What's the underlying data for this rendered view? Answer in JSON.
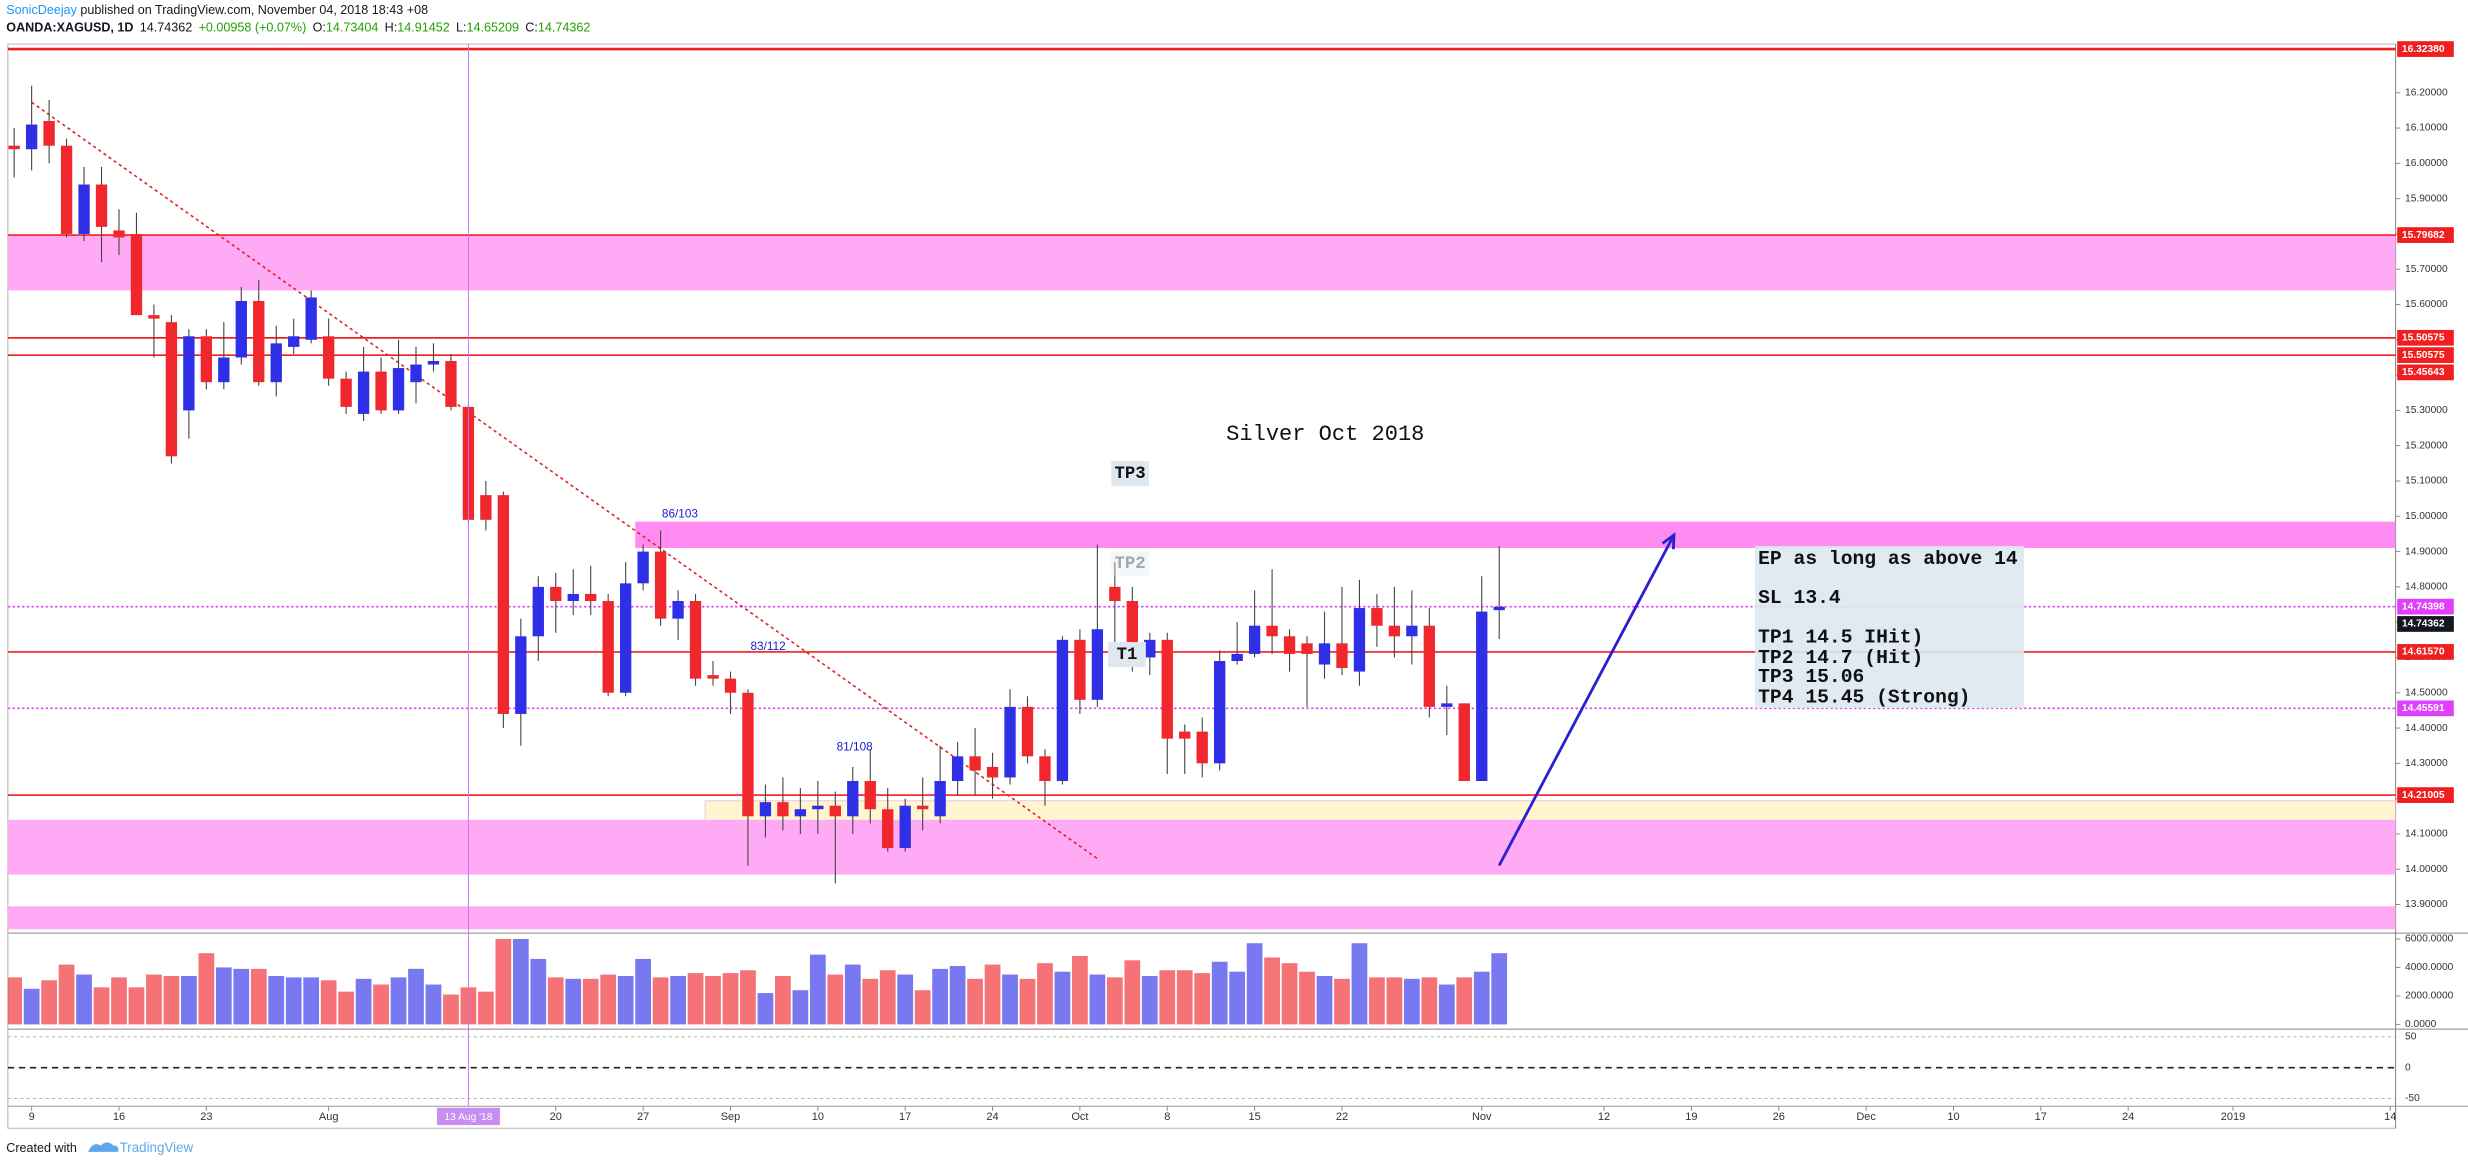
{
  "chart_data": {
    "type": "candlestick",
    "author": "SonicDeejay",
    "published": " published on TradingView.com, November 04, 2018 18:43 +08",
    "symbol": "OANDA:XAGUSD, 1D",
    "last": "14.74362",
    "change": "+0.00958 (+0.07%)",
    "ohlc_header": [
      {
        "key": "O:",
        "value": "14.73404"
      },
      {
        "key": "H:",
        "value": "14.91452"
      },
      {
        "key": "L:",
        "value": "14.65209"
      },
      {
        "key": "C:",
        "value": "14.74362"
      }
    ],
    "title": "Silver Oct 2018",
    "footer_prefix": "Created with",
    "footer_brand": "TradingView",
    "up_color": "#2f2fe8",
    "down_color": "#f0282d",
    "x": [
      "2018-07-06",
      "2018-07-09",
      "2018-07-10",
      "2018-07-11",
      "2018-07-12",
      "2018-07-13",
      "2018-07-16",
      "2018-07-17",
      "2018-07-18",
      "2018-07-19",
      "2018-07-20",
      "2018-07-23",
      "2018-07-24",
      "2018-07-25",
      "2018-07-26",
      "2018-07-27",
      "2018-07-30",
      "2018-07-31",
      "2018-08-01",
      "2018-08-02",
      "2018-08-03",
      "2018-08-06",
      "2018-08-07",
      "2018-08-08",
      "2018-08-09",
      "2018-08-10",
      "2018-08-13",
      "2018-08-14",
      "2018-08-15",
      "2018-08-16",
      "2018-08-17",
      "2018-08-20",
      "2018-08-21",
      "2018-08-22",
      "2018-08-23",
      "2018-08-24",
      "2018-08-27",
      "2018-08-28",
      "2018-08-29",
      "2018-08-30",
      "2018-08-31",
      "2018-09-03",
      "2018-09-04",
      "2018-09-05",
      "2018-09-06",
      "2018-09-07",
      "2018-09-10",
      "2018-09-11",
      "2018-09-12",
      "2018-09-13",
      "2018-09-14",
      "2018-09-17",
      "2018-09-18",
      "2018-09-19",
      "2018-09-20",
      "2018-09-21",
      "2018-09-24",
      "2018-09-25",
      "2018-09-26",
      "2018-09-27",
      "2018-09-28",
      "2018-10-01",
      "2018-10-02",
      "2018-10-03",
      "2018-10-04",
      "2018-10-05",
      "2018-10-08",
      "2018-10-09",
      "2018-10-10",
      "2018-10-11",
      "2018-10-12",
      "2018-10-15",
      "2018-10-16",
      "2018-10-17",
      "2018-10-18",
      "2018-10-19",
      "2018-10-22",
      "2018-10-23",
      "2018-10-24",
      "2018-10-25",
      "2018-10-26",
      "2018-10-29",
      "2018-10-30",
      "2018-10-31",
      "2018-11-01",
      "2018-11-02"
    ],
    "open": [
      16.05,
      16.04,
      16.12,
      16.05,
      15.8,
      15.94,
      15.81,
      15.8,
      15.57,
      15.55,
      15.3,
      15.51,
      15.38,
      15.45,
      15.61,
      15.38,
      15.48,
      15.5,
      15.51,
      15.39,
      15.29,
      15.41,
      15.3,
      15.38,
      15.43,
      15.44,
      15.31,
      15.06,
      15.06,
      14.44,
      14.66,
      14.8,
      14.76,
      14.78,
      14.76,
      14.5,
      14.81,
      14.9,
      14.71,
      14.76,
      14.55,
      14.54,
      14.5,
      14.15,
      14.19,
      14.15,
      14.17,
      14.18,
      14.15,
      14.25,
      14.17,
      14.06,
      14.18,
      14.15,
      14.25,
      14.32,
      14.29,
      14.26,
      14.46,
      14.32,
      14.25,
      14.65,
      14.48,
      14.8,
      14.76,
      14.6,
      14.65,
      14.39,
      14.39,
      14.3,
      14.59,
      14.61,
      14.69,
      14.66,
      14.64,
      14.58,
      14.64,
      14.56,
      14.74,
      14.69,
      14.66,
      14.69,
      14.46,
      14.47,
      14.25,
      14.73404
    ],
    "high": [
      16.1,
      16.22,
      16.18,
      16.07,
      15.99,
      15.99,
      15.87,
      15.86,
      15.6,
      15.57,
      15.53,
      15.53,
      15.55,
      15.65,
      15.67,
      15.54,
      15.56,
      15.64,
      15.56,
      15.41,
      15.48,
      15.45,
      15.5,
      15.48,
      15.49,
      15.46,
      15.32,
      15.1,
      15.07,
      14.71,
      14.83,
      14.84,
      14.85,
      14.86,
      14.78,
      14.87,
      14.92,
      14.96,
      14.79,
      14.78,
      14.59,
      14.56,
      14.51,
      14.24,
      14.26,
      14.23,
      14.25,
      14.22,
      14.29,
      14.34,
      14.23,
      14.2,
      14.26,
      14.35,
      14.36,
      14.4,
      14.33,
      14.51,
      14.49,
      14.34,
      14.66,
      14.68,
      14.92,
      14.87,
      14.8,
      14.67,
      14.67,
      14.41,
      14.43,
      14.62,
      14.7,
      14.79,
      14.85,
      14.68,
      14.66,
      14.73,
      14.8,
      14.82,
      14.78,
      14.8,
      14.79,
      14.74,
      14.52,
      14.47,
      14.83,
      14.91452
    ],
    "low": [
      15.96,
      15.98,
      16.0,
      15.79,
      15.78,
      15.72,
      15.74,
      15.57,
      15.45,
      15.15,
      15.22,
      15.36,
      15.36,
      15.43,
      15.37,
      15.34,
      15.46,
      15.49,
      15.37,
      15.29,
      15.27,
      15.29,
      15.29,
      15.32,
      15.41,
      15.3,
      14.98,
      14.96,
      14.4,
      14.35,
      14.59,
      14.67,
      14.72,
      14.72,
      14.49,
      14.49,
      14.79,
      14.69,
      14.65,
      14.52,
      14.52,
      14.44,
      14.01,
      14.09,
      14.11,
      14.1,
      14.1,
      13.96,
      14.1,
      14.13,
      14.05,
      14.05,
      14.11,
      14.13,
      14.21,
      14.21,
      14.2,
      14.24,
      14.3,
      14.18,
      14.24,
      14.44,
      14.46,
      14.6,
      14.56,
      14.55,
      14.27,
      14.27,
      14.26,
      14.28,
      14.58,
      14.6,
      14.61,
      14.56,
      14.46,
      14.54,
      14.55,
      14.52,
      14.63,
      14.6,
      14.58,
      14.43,
      14.38,
      14.25,
      14.25,
      14.65209
    ],
    "close": [
      16.04,
      16.11,
      16.05,
      15.8,
      15.94,
      15.82,
      15.79,
      15.57,
      15.56,
      15.17,
      15.51,
      15.38,
      15.45,
      15.61,
      15.38,
      15.49,
      15.51,
      15.62,
      15.39,
      15.31,
      15.41,
      15.3,
      15.42,
      15.43,
      15.44,
      15.31,
      14.99,
      14.99,
      14.44,
      14.66,
      14.8,
      14.76,
      14.78,
      14.76,
      14.5,
      14.81,
      14.9,
      14.71,
      14.76,
      14.54,
      14.54,
      14.5,
      14.15,
      14.19,
      14.15,
      14.17,
      14.18,
      14.15,
      14.25,
      14.17,
      14.06,
      14.18,
      14.17,
      14.25,
      14.32,
      14.28,
      14.26,
      14.46,
      14.32,
      14.25,
      14.65,
      14.48,
      14.68,
      14.76,
      14.61,
      14.65,
      14.37,
      14.37,
      14.3,
      14.59,
      14.61,
      14.69,
      14.66,
      14.61,
      14.61,
      14.64,
      14.57,
      14.74,
      14.69,
      14.66,
      14.69,
      14.46,
      14.47,
      14.25,
      14.73,
      14.74362
    ],
    "volume": [
      3300,
      2500,
      3100,
      4200,
      3500,
      2600,
      3300,
      2600,
      3500,
      3400,
      3400,
      5000,
      4000,
      3900,
      3900,
      3400,
      3300,
      3300,
      3100,
      2300,
      3200,
      2800,
      3300,
      3900,
      2800,
      2100,
      2600,
      2300,
      6000,
      6000,
      4600,
      3300,
      3200,
      3200,
      3500,
      3400,
      4600,
      3300,
      3400,
      3600,
      3400,
      3600,
      3800,
      2200,
      3400,
      2400,
      4900,
      3500,
      4200,
      3200,
      3800,
      3500,
      2400,
      3900,
      4100,
      3200,
      4200,
      3500,
      3200,
      4300,
      3700,
      4800,
      3500,
      3300,
      4500,
      3400,
      3800,
      3800,
      3600,
      4400,
      3700,
      5700,
      4700,
      4300,
      3700,
      3400,
      3200,
      5700,
      3300,
      3300,
      3200,
      3300,
      2800,
      3300,
      3700,
      5000
    ],
    "xlim": [
      "2018-07-06",
      "2019-01-15"
    ],
    "xticks": [
      {
        "value": "2018-07-09",
        "label": "9"
      },
      {
        "value": "2018-07-16",
        "label": "16"
      },
      {
        "value": "2018-07-23",
        "label": "23"
      },
      {
        "value": "2018-08-01",
        "label": "Aug"
      },
      {
        "value": "2018-08-20",
        "label": "20"
      },
      {
        "value": "2018-08-27",
        "label": "27"
      },
      {
        "value": "2018-09-03",
        "label": "Sep"
      },
      {
        "value": "2018-09-10",
        "label": "10"
      },
      {
        "value": "2018-09-17",
        "label": "17"
      },
      {
        "value": "2018-09-24",
        "label": "24"
      },
      {
        "value": "2018-10-01",
        "label": "Oct"
      },
      {
        "value": "2018-10-08",
        "label": "8"
      },
      {
        "value": "2018-10-15",
        "label": "15"
      },
      {
        "value": "2018-10-22",
        "label": "22"
      },
      {
        "value": "2018-11-01",
        "label": "Nov"
      },
      {
        "value": "2018-11-12",
        "label": "12"
      },
      {
        "value": "2018-11-19",
        "label": "19"
      },
      {
        "value": "2018-11-26",
        "label": "26"
      },
      {
        "value": "2018-12-03",
        "label": "Dec"
      },
      {
        "value": "2018-12-10",
        "label": "10"
      },
      {
        "value": "2018-12-17",
        "label": "17"
      },
      {
        "value": "2018-12-24",
        "label": "24"
      },
      {
        "value": "2019-01-01",
        "label": "2019"
      },
      {
        "value": "2019-01-14",
        "label": "14"
      }
    ],
    "marker_date": {
      "value": "2018-08-13",
      "label": "13 Aug '18"
    },
    "ylim": [
      13.819,
      16.338
    ],
    "yticks": [
      {
        "value": 13.9,
        "label": "13.90000"
      },
      {
        "value": 14.0,
        "label": "14.00000"
      },
      {
        "value": 14.1,
        "label": "14.10000"
      },
      {
        "value": 14.2,
        "label": "14.20000"
      },
      {
        "value": 14.3,
        "label": "14.30000"
      },
      {
        "value": 14.4,
        "label": "14.40000"
      },
      {
        "value": 14.5,
        "label": "14.50000"
      },
      {
        "value": 14.6,
        "label": "14.60000"
      },
      {
        "value": 14.7,
        "label": "14.70000"
      },
      {
        "value": 14.8,
        "label": "14.80000"
      },
      {
        "value": 14.9,
        "label": "14.90000"
      },
      {
        "value": 15.0,
        "label": "15.00000"
      },
      {
        "value": 15.1,
        "label": "15.10000"
      },
      {
        "value": 15.2,
        "label": "15.20000"
      },
      {
        "value": 15.3,
        "label": "15.30000"
      },
      {
        "value": 15.4,
        "label": "15.40000"
      },
      {
        "value": 15.5,
        "label": "15.50000"
      },
      {
        "value": 15.6,
        "label": "15.60000"
      },
      {
        "value": 15.7,
        "label": "15.70000"
      },
      {
        "value": 15.8,
        "label": "15.80000"
      },
      {
        "value": 15.9,
        "label": "15.90000"
      },
      {
        "value": 16.0,
        "label": "16.00000"
      },
      {
        "value": 16.1,
        "label": "16.10000"
      },
      {
        "value": 16.2,
        "label": "16.20000"
      }
    ],
    "volume_lim": [
      0,
      6300
    ],
    "volume_ticks": [
      {
        "value": 0,
        "label": "0.0000"
      },
      {
        "value": 2000,
        "label": "2000.0000"
      },
      {
        "value": 4000,
        "label": "4000.0000"
      },
      {
        "value": 6000,
        "label": "6000.0000"
      }
    ],
    "osc_lim": [
      -60,
      60
    ],
    "osc_ticks": [
      {
        "value": -50,
        "label": "-50"
      },
      {
        "value": 0,
        "label": "0"
      },
      {
        "value": 50,
        "label": "50"
      }
    ],
    "levels": [
      {
        "value": 16.3238,
        "label": "16.32380",
        "color": "#f01e1e",
        "style": "solid"
      },
      {
        "value": 15.79682,
        "label": "15.79682",
        "color": "#f01e1e",
        "style": "solid"
      },
      {
        "value": 15.50575,
        "label": "15.50575",
        "color": "#f01e1e",
        "style": "solid"
      },
      {
        "value": 15.50575,
        "label": "15.50575",
        "color": "#f01e1e",
        "style": "solid"
      },
      {
        "value": 15.45643,
        "label": "15.45643",
        "color": "#f01e1e",
        "style": "solid"
      },
      {
        "value": 14.74398,
        "label": "14.74398",
        "color": "#e040fb",
        "style": "dotted"
      },
      {
        "value": 14.74362,
        "label": "14.74362",
        "color": "#131722",
        "style": "last"
      },
      {
        "value": 14.6157,
        "label": "14.61570",
        "color": "#f01e1e",
        "style": "solid"
      },
      {
        "value": 14.45591,
        "label": "14.45591",
        "color": "#e040fb",
        "style": "dotted"
      },
      {
        "value": 14.21005,
        "label": "14.21005",
        "color": "#f01e1e",
        "style": "solid"
      }
    ],
    "zones": [
      {
        "from": 15.64,
        "to": 15.79682,
        "start": "2018-07-06",
        "color": "#ffaaf5"
      },
      {
        "from": 14.91,
        "to": 14.985,
        "start": "2018-08-27",
        "color": "#ff8cf0"
      },
      {
        "from": 14.105,
        "to": 14.194,
        "start": "2018-08-31",
        "color": "#fff6d0"
      },
      {
        "from": 13.985,
        "to": 14.14,
        "start": "2018-07-06",
        "color": "#ffaaf5"
      },
      {
        "from": 13.83,
        "to": 13.895,
        "start": "2018-07-06",
        "color": "#ffaaf5"
      }
    ],
    "trendline": {
      "from": [
        "2018-07-09",
        16.173
      ],
      "to": [
        "2018-10-02",
        14.03
      ],
      "color": "#e02020"
    },
    "arrow": {
      "from": [
        "2018-11-02",
        14.011
      ],
      "to": [
        "2018-11-16",
        14.947
      ],
      "color": "#2a20d0"
    },
    "labels": [
      {
        "text": "86/103"
      },
      {
        "text": "83/112"
      },
      {
        "text": "81/108"
      }
    ],
    "tp_tags": [
      "TP3",
      "TP2",
      "T1"
    ],
    "plan": [
      "EP as long as above 14",
      "SL 13.4",
      "TP1 14.5 IHit)",
      "TP2 14.7 (Hit)",
      "TP3 15.06",
      "TP4 15.45 (Strong)"
    ]
  }
}
